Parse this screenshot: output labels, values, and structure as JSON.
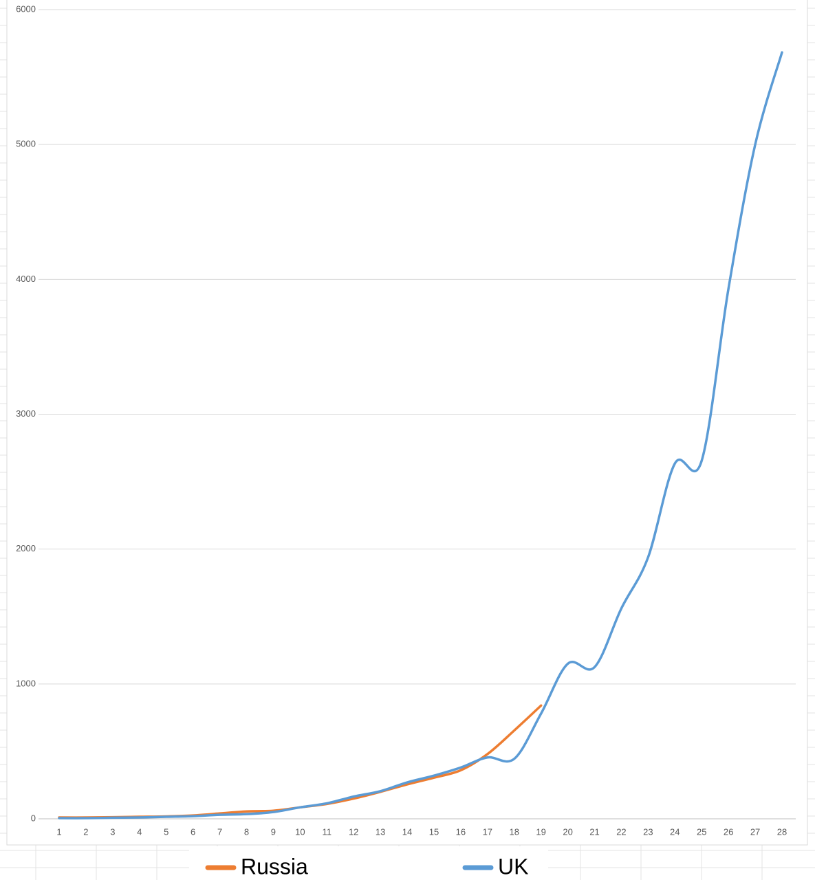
{
  "chart_data": {
    "type": "line",
    "categories": [
      1,
      2,
      3,
      4,
      5,
      6,
      7,
      8,
      9,
      10,
      11,
      12,
      13,
      14,
      15,
      16,
      17,
      18,
      19,
      20,
      21,
      22,
      23,
      24,
      25,
      26,
      27,
      28
    ],
    "series": [
      {
        "name": "Russia",
        "color": "#ed7d31",
        "values": [
          10,
          10,
          12,
          15,
          18,
          25,
          40,
          55,
          60,
          85,
          110,
          150,
          200,
          255,
          305,
          360,
          480,
          655,
          840,
          null,
          null,
          null,
          null,
          null,
          null,
          null,
          null,
          null
        ]
      },
      {
        "name": "UK",
        "color": "#5b9bd5",
        "values": [
          5,
          5,
          8,
          10,
          15,
          20,
          30,
          35,
          50,
          85,
          115,
          165,
          205,
          270,
          320,
          380,
          455,
          445,
          780,
          1150,
          1125,
          1560,
          1940,
          2635,
          2655,
          3930,
          5000,
          5683
        ]
      }
    ],
    "ylim": [
      0,
      6000
    ],
    "yticks": [
      0,
      1000,
      2000,
      3000,
      4000,
      5000,
      6000
    ],
    "grid": true,
    "legend": "bottom",
    "smooth": true
  }
}
